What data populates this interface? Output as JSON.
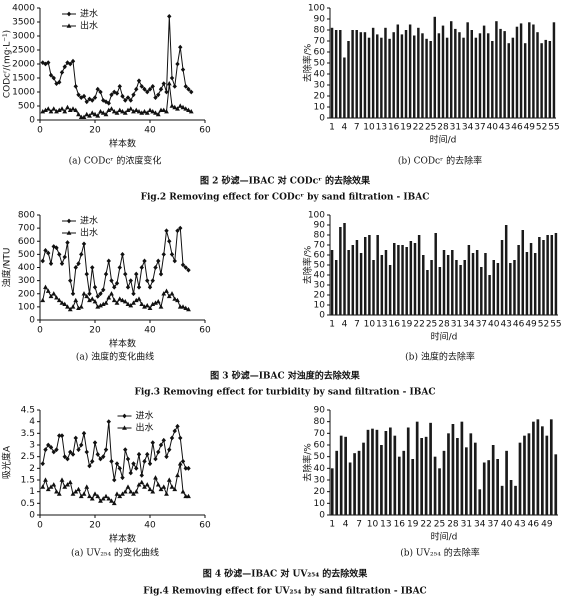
{
  "chart_data": [
    {
      "type": "line",
      "ylabel": "CODᴄʳ/(mg·L⁻¹)",
      "xlabel": "样本数",
      "xlim": [
        0,
        60
      ],
      "xticks": [
        0,
        20,
        40,
        60
      ],
      "ylim": [
        0,
        4000
      ],
      "yticks": [
        0,
        500,
        1000,
        1500,
        2000,
        2500,
        3000,
        3500,
        4000
      ],
      "legend": "upper left",
      "x": [
        1,
        2,
        3,
        4,
        5,
        6,
        7,
        8,
        9,
        10,
        11,
        12,
        13,
        14,
        15,
        16,
        17,
        18,
        19,
        20,
        21,
        22,
        23,
        24,
        25,
        26,
        27,
        28,
        29,
        30,
        31,
        32,
        33,
        34,
        35,
        36,
        37,
        38,
        39,
        40,
        41,
        42,
        43,
        44,
        45,
        46,
        47,
        48,
        49,
        50,
        51,
        52,
        53,
        54,
        55
      ],
      "series": [
        {
          "name": "进水",
          "color": "#111111",
          "marker": "diamond",
          "values": [
            2050,
            2000,
            2050,
            1600,
            1500,
            1300,
            1350,
            1700,
            1900,
            2050,
            2000,
            2100,
            1200,
            900,
            800,
            850,
            650,
            750,
            700,
            800,
            1100,
            1000,
            700,
            650,
            600,
            900,
            1000,
            950,
            1200,
            850,
            700,
            800,
            700,
            900,
            1100,
            1400,
            1200,
            1100,
            1000,
            1100,
            1200,
            800,
            900,
            1100,
            1300,
            1000,
            3700,
            1500,
            1200,
            2000,
            2600,
            1800,
            1200,
            1100,
            1000
          ]
        },
        {
          "name": "出水",
          "color": "#111111",
          "marker": "triangle",
          "values": [
            300,
            350,
            400,
            300,
            400,
            300,
            350,
            400,
            300,
            450,
            350,
            400,
            350,
            200,
            100,
            100,
            200,
            150,
            250,
            200,
            150,
            300,
            250,
            200,
            350,
            400,
            300,
            250,
            350,
            300,
            250,
            350,
            400,
            300,
            350,
            300,
            250,
            300,
            250,
            350,
            300,
            250,
            200,
            350,
            350,
            300,
            1300,
            500,
            450,
            400,
            500,
            450,
            400,
            350,
            300
          ]
        }
      ]
    },
    {
      "type": "bar",
      "ylabel": "去除率/%",
      "xlabel": "时间/d",
      "color": "#1a1a1a",
      "ylim": [
        0,
        100
      ],
      "yticks": [
        0,
        10,
        20,
        30,
        40,
        50,
        60,
        70,
        80,
        90,
        100
      ],
      "categories": [
        "1",
        null,
        null,
        "4",
        null,
        null,
        "7",
        null,
        null,
        "10",
        null,
        null,
        "13",
        null,
        null,
        "16",
        null,
        null,
        "19",
        null,
        null,
        "22",
        null,
        null,
        "25",
        null,
        null,
        "28",
        null,
        null,
        "31",
        null,
        null,
        "34",
        null,
        null,
        "37",
        null,
        null,
        "40",
        null,
        null,
        "43",
        null,
        null,
        "46",
        null,
        null,
        "49",
        null,
        null,
        "52",
        null,
        null,
        "55"
      ],
      "values": [
        82,
        80,
        80,
        55,
        70,
        80,
        80,
        78,
        78,
        73,
        82,
        76,
        73,
        82,
        72,
        78,
        85,
        76,
        80,
        85,
        75,
        82,
        77,
        72,
        70,
        92,
        77,
        84,
        73,
        88,
        81,
        78,
        73,
        87,
        80,
        73,
        77,
        84,
        77,
        70,
        88,
        81,
        79,
        68,
        73,
        83,
        86,
        68,
        87,
        85,
        78,
        68,
        71,
        70,
        87
      ]
    },
    {
      "type": "line",
      "ylabel": "浊度/NTU",
      "xlabel": "样本数",
      "xlim": [
        0,
        60
      ],
      "xticks": [
        0,
        20,
        40,
        60
      ],
      "ylim": [
        0,
        800
      ],
      "yticks": [
        0,
        100,
        200,
        300,
        400,
        500,
        600,
        700,
        800
      ],
      "legend": "upper left",
      "x": [
        1,
        2,
        3,
        4,
        5,
        6,
        7,
        8,
        9,
        10,
        11,
        12,
        13,
        14,
        15,
        16,
        17,
        18,
        19,
        20,
        21,
        22,
        23,
        24,
        25,
        26,
        27,
        28,
        29,
        30,
        31,
        32,
        33,
        34,
        35,
        36,
        37,
        38,
        39,
        40,
        41,
        42,
        43,
        44,
        45,
        46,
        47,
        48,
        49,
        50,
        51,
        52,
        53,
        54
      ],
      "series": [
        {
          "name": "进水",
          "color": "#111111",
          "marker": "diamond",
          "values": [
            450,
            530,
            510,
            430,
            560,
            550,
            500,
            430,
            480,
            590,
            300,
            200,
            400,
            430,
            500,
            580,
            350,
            200,
            400,
            250,
            180,
            200,
            230,
            350,
            450,
            300,
            250,
            280,
            400,
            500,
            350,
            250,
            300,
            200,
            350,
            250,
            400,
            450,
            300,
            250,
            300,
            400,
            450,
            350,
            500,
            680,
            600,
            500,
            450,
            680,
            700,
            420,
            400,
            380
          ]
        },
        {
          "name": "出水",
          "color": "#111111",
          "marker": "triangle",
          "values": [
            150,
            250,
            220,
            180,
            200,
            170,
            150,
            130,
            120,
            100,
            80,
            100,
            150,
            90,
            100,
            200,
            180,
            150,
            160,
            140,
            100,
            110,
            120,
            130,
            170,
            200,
            150,
            130,
            160,
            150,
            140,
            120,
            110,
            130,
            150,
            160,
            120,
            100,
            110,
            90,
            120,
            130,
            140,
            100,
            200,
            220,
            180,
            200,
            160,
            150,
            100,
            100,
            90,
            80
          ]
        }
      ]
    },
    {
      "type": "bar",
      "ylabel": "去除率/%",
      "xlabel": "时间/d",
      "color": "#1a1a1a",
      "ylim": [
        0,
        100
      ],
      "yticks": [
        0,
        10,
        20,
        30,
        40,
        50,
        60,
        70,
        80,
        90,
        100
      ],
      "categories": [
        "1",
        null,
        null,
        "4",
        null,
        null,
        "7",
        null,
        null,
        "10",
        null,
        null,
        "13",
        null,
        null,
        "16",
        null,
        null,
        "19",
        null,
        null,
        "22",
        null,
        null,
        "25",
        null,
        null,
        "28",
        null,
        null,
        "31",
        null,
        null,
        "34",
        null,
        null,
        "37",
        null,
        null,
        "40",
        null,
        null,
        "43",
        null,
        null,
        "46",
        null,
        null,
        "49",
        null,
        null,
        "52",
        null,
        null,
        "55"
      ],
      "values": [
        65,
        55,
        88,
        92,
        65,
        70,
        75,
        62,
        78,
        80,
        55,
        80,
        60,
        65,
        50,
        72,
        70,
        70,
        68,
        74,
        72,
        80,
        60,
        45,
        55,
        82,
        48,
        65,
        60,
        65,
        55,
        50,
        55,
        70,
        62,
        65,
        48,
        62,
        40,
        55,
        52,
        75,
        90,
        52,
        55,
        70,
        85,
        63,
        72,
        62,
        78,
        75,
        80,
        80,
        82
      ]
    },
    {
      "type": "line",
      "ylabel": "吸光度A",
      "xlabel": "样本数",
      "xlim": [
        0,
        60
      ],
      "xticks": [
        0,
        20,
        40,
        60
      ],
      "ylim": [
        0,
        4.5
      ],
      "yticks": [
        0,
        0.5,
        1,
        1.5,
        2,
        2.5,
        3,
        3.5,
        4,
        4.5
      ],
      "legend": "upper center",
      "x": [
        1,
        2,
        3,
        4,
        5,
        6,
        7,
        8,
        9,
        10,
        11,
        12,
        13,
        14,
        15,
        16,
        17,
        18,
        19,
        20,
        21,
        22,
        23,
        24,
        25,
        26,
        27,
        28,
        29,
        30,
        31,
        32,
        33,
        34,
        35,
        36,
        37,
        38,
        39,
        40,
        41,
        42,
        43,
        44,
        45,
        46,
        47,
        48,
        49,
        50,
        51,
        52,
        53,
        54
      ],
      "series": [
        {
          "name": "进水",
          "color": "#111111",
          "marker": "diamond",
          "values": [
            2.2,
            2.8,
            3.0,
            2.9,
            2.7,
            2.8,
            3.4,
            3.4,
            2.5,
            2.4,
            2.7,
            2.6,
            3.3,
            2.8,
            3.0,
            3.5,
            2.7,
            2.1,
            2.3,
            3.1,
            2.6,
            2.4,
            2.5,
            2.8,
            4.0,
            2.3,
            1.5,
            2.2,
            2.0,
            1.6,
            2.8,
            2.4,
            1.8,
            2.2,
            2.0,
            2.6,
            1.7,
            2.3,
            2.6,
            2.2,
            3.1,
            2.4,
            2.7,
            3.0,
            3.2,
            2.5,
            2.8,
            3.3,
            3.6,
            3.8,
            3.3,
            2.3,
            2.0,
            2.0
          ]
        },
        {
          "name": "出水",
          "color": "#111111",
          "marker": "triangle",
          "values": [
            1.2,
            1.5,
            1.1,
            1.2,
            1.3,
            1.0,
            0.9,
            1.5,
            1.2,
            1.3,
            1.4,
            0.9,
            1.0,
            1.1,
            0.8,
            0.9,
            1.2,
            0.8,
            0.7,
            0.9,
            0.8,
            0.6,
            0.7,
            0.8,
            0.7,
            0.6,
            0.5,
            0.9,
            0.8,
            0.9,
            1.0,
            1.2,
            1.0,
            0.9,
            1.0,
            1.3,
            1.4,
            1.2,
            1.3,
            1.1,
            1.0,
            1.6,
            1.3,
            1.1,
            1.2,
            0.9,
            1.5,
            1.2,
            1.1,
            1.7,
            2.2,
            1.0,
            0.8,
            0.8
          ]
        }
      ]
    },
    {
      "type": "bar",
      "ylabel": "去除率/%",
      "xlabel": "时间/d",
      "color": "#1a1a1a",
      "ylim": [
        0,
        90
      ],
      "yticks": [
        0,
        10,
        20,
        30,
        40,
        50,
        60,
        70,
        80,
        90
      ],
      "categories": [
        "1",
        null,
        null,
        "4",
        null,
        null,
        "7",
        null,
        null,
        "10",
        null,
        null,
        "13",
        null,
        null,
        "16",
        null,
        null,
        "19",
        null,
        null,
        "22",
        null,
        null,
        "25",
        null,
        null,
        "28",
        null,
        null,
        "31",
        null,
        null,
        "34",
        null,
        null,
        "37",
        null,
        null,
        "40",
        null,
        null,
        "43",
        null,
        null,
        "46",
        null,
        null,
        "49",
        null,
        null
      ],
      "values": [
        40,
        55,
        68,
        67,
        45,
        53,
        55,
        62,
        73,
        74,
        73,
        60,
        72,
        75,
        68,
        50,
        55,
        75,
        48,
        80,
        66,
        67,
        79,
        50,
        40,
        55,
        70,
        78,
        66,
        80,
        58,
        70,
        62,
        22,
        45,
        47,
        60,
        48,
        25,
        55,
        30,
        25,
        62,
        68,
        70,
        80,
        82,
        76,
        68,
        82,
        52
      ]
    }
  ],
  "figures": [
    {
      "subcaption_a": "(a)  CODᴄʳ 的浓度变化",
      "subcaption_b": "(b)  CODᴄʳ 的去除率",
      "caption_cn": "图 2    砂滤—IBAC 对 CODᴄʳ 的去除效果",
      "caption_en": "Fig.2    Removing effect for CODᴄʳ by sand filtration - IBAC"
    },
    {
      "subcaption_a": "(a)  浊度的变化曲线",
      "subcaption_b": "(b)  浊度的去除率",
      "caption_cn": "图 3    砂滤—IBAC 对浊度的去除效果",
      "caption_en": "Fig.3    Removing effect for turbidity by sand filtration - IBAC"
    },
    {
      "subcaption_a": "(a)  UV₂₅₄ 的变化曲线",
      "subcaption_b": "(b)  UV₂₅₄ 的去除率",
      "caption_cn": "图 4    砂滤—IBAC 对 UV₂₅₄ 的去除效果",
      "caption_en": "Fig.4    Removing effect for UV₂₅₄ by sand filtration - IBAC"
    }
  ]
}
